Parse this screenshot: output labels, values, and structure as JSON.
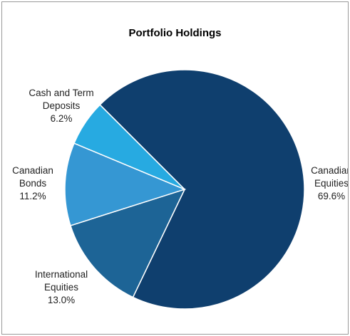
{
  "chart_data": {
    "type": "pie",
    "title": "Portfolio Holdings",
    "categories": [
      "Canadian Equities",
      "International Equities",
      "Canadian Bonds",
      "Cash and Term Deposits"
    ],
    "values": [
      69.6,
      13.0,
      11.2,
      6.2
    ],
    "value_labels": [
      "69.6%",
      "13.0%",
      "11.2%",
      "6.2%"
    ],
    "colors": [
      "#0f3f6e",
      "#1d6496",
      "#3597d3",
      "#27aae1"
    ]
  }
}
